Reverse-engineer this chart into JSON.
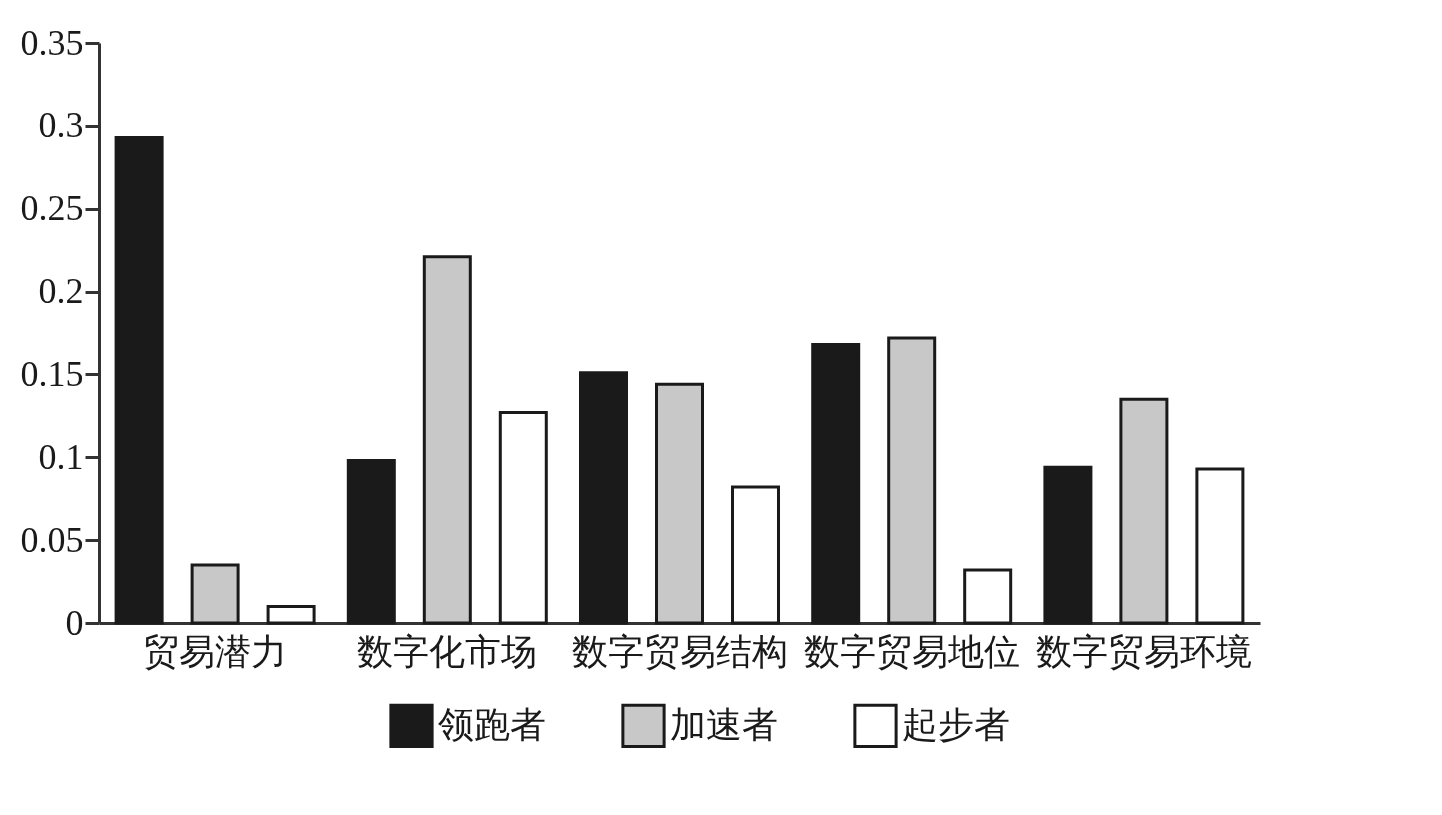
{
  "chart_data": {
    "type": "bar",
    "categories": [
      "贸易潜力",
      "数字化市场",
      "数字贸易结构",
      "数字贸易地位",
      "数字贸易环境"
    ],
    "series": [
      {
        "name": "领跑者",
        "color": "#1a1a1a",
        "values": [
          0.293,
          0.098,
          0.151,
          0.168,
          0.094
        ]
      },
      {
        "name": "加速者",
        "color": "#c8c8c8",
        "values": [
          0.035,
          0.221,
          0.144,
          0.172,
          0.135
        ]
      },
      {
        "name": "起步者",
        "color": "#ffffff",
        "values": [
          0.01,
          0.127,
          0.082,
          0.032,
          0.093
        ]
      }
    ],
    "ylim": [
      0,
      0.35
    ],
    "yticks": [
      0,
      0.05,
      0.1,
      0.15,
      0.2,
      0.25,
      0.3,
      0.35
    ],
    "legend": "bottom"
  }
}
